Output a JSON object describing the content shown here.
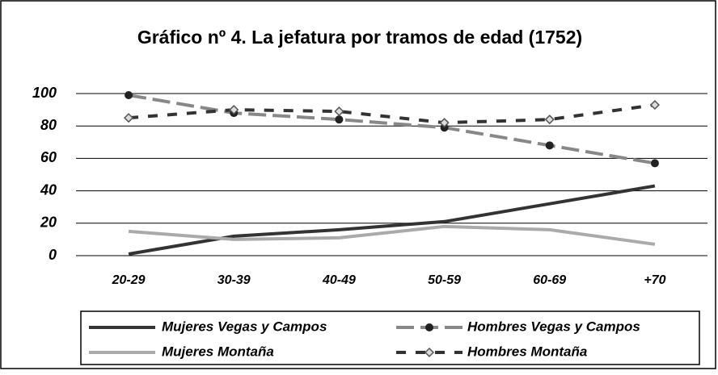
{
  "chart_data": {
    "type": "line",
    "title": "Gráfico nº 4. La jefatura por tramos de edad (1752)",
    "categories": [
      "20-29",
      "30-39",
      "40-49",
      "50-59",
      "60-69",
      "+70"
    ],
    "series": [
      {
        "name": "Mujeres Vegas y Campos",
        "color": "#333333",
        "dash": false,
        "marker": "none",
        "values": [
          1,
          12,
          16,
          21,
          32,
          43
        ]
      },
      {
        "name": "Hombres Vegas y Campos",
        "color": "#888888",
        "dash": true,
        "marker": "circle",
        "values": [
          99,
          88,
          84,
          79,
          68,
          57
        ]
      },
      {
        "name": "Mujeres Montaña",
        "color": "#aaaaaa",
        "dash": false,
        "marker": "none",
        "values": [
          15,
          10,
          11,
          18,
          16,
          7
        ]
      },
      {
        "name": "Hombres Montaña",
        "color": "#333333",
        "dash": true,
        "marker": "diamond",
        "values": [
          85,
          90,
          89,
          82,
          84,
          93
        ]
      }
    ],
    "ylim": [
      0,
      100
    ],
    "yticks": [
      0,
      20,
      40,
      60,
      80,
      100
    ],
    "grid": true,
    "legend": "bottom"
  }
}
